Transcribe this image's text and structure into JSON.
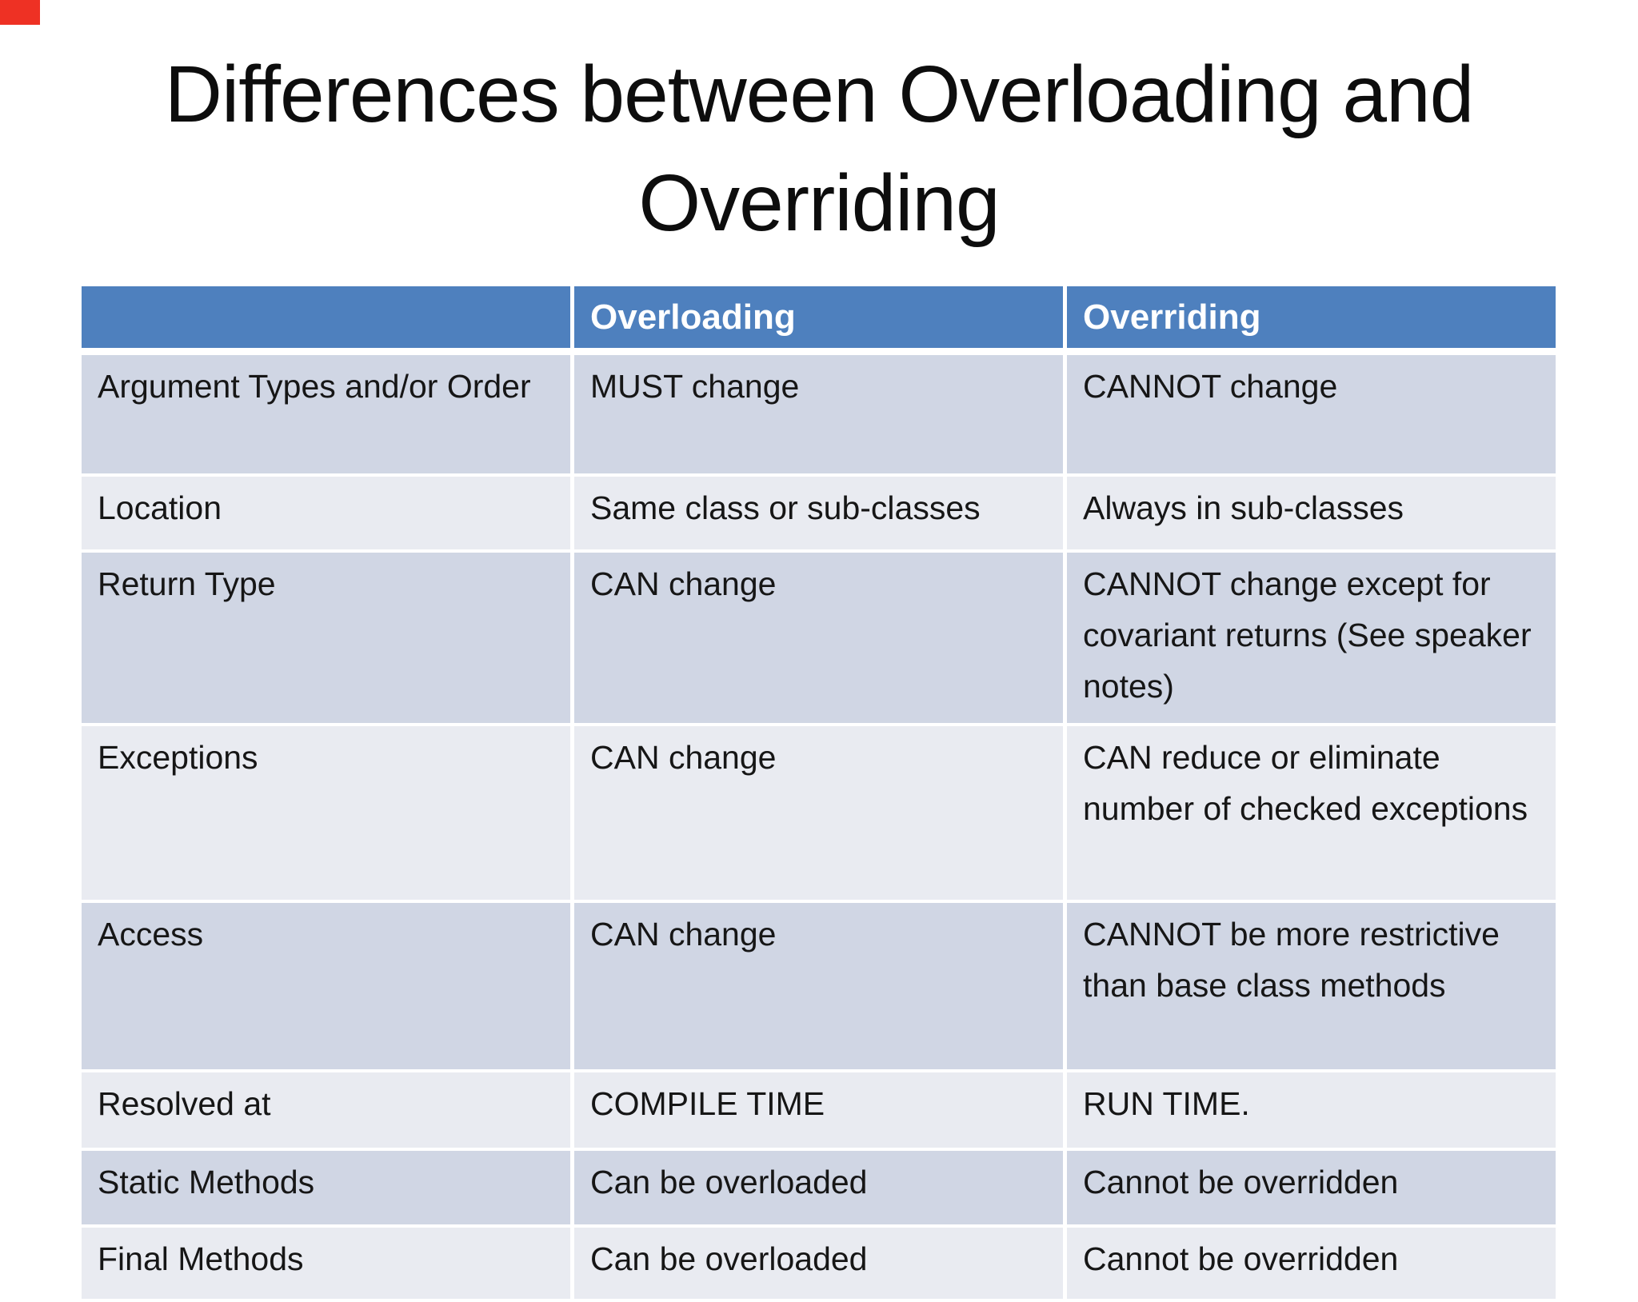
{
  "title": {
    "line1": "Differences between Overloading and",
    "line2": "Overriding"
  },
  "corner_marker": {
    "color": "#ee3124"
  },
  "colors": {
    "background": "#ffffff",
    "header_bg": "#4e80be",
    "header_text": "#ffffff",
    "band_dark": "#d0d6e4",
    "band_light": "#e9ebf1",
    "body_text": "#161616"
  },
  "table": {
    "columns": [
      "",
      "Overloading",
      "Overriding"
    ],
    "rows": [
      {
        "label": "Argument Types and/or Order",
        "overloading": "MUST change",
        "overriding": "CANNOT change"
      },
      {
        "label": "Location",
        "overloading": "Same class  or sub-classes",
        "overriding": "Always in sub-classes"
      },
      {
        "label": "Return Type",
        "overloading": "CAN change",
        "overriding": "CANNOT change except for covariant returns (See speaker notes)"
      },
      {
        "label": "Exceptions",
        "overloading": "CAN change",
        "overriding": "CAN reduce or eliminate number of checked exceptions"
      },
      {
        "label": "Access",
        "overloading": "CAN change",
        "overriding": "CANNOT be more restrictive than base class methods"
      },
      {
        "label": "Resolved at",
        "overloading": "COMPILE TIME",
        "overriding": "RUN TIME."
      },
      {
        "label": "Static Methods",
        "overloading": "Can be overloaded",
        "overriding": "Cannot be overridden"
      },
      {
        "label": "Final Methods",
        "overloading": "Can be overloaded",
        "overriding": "Cannot be overridden"
      }
    ]
  }
}
